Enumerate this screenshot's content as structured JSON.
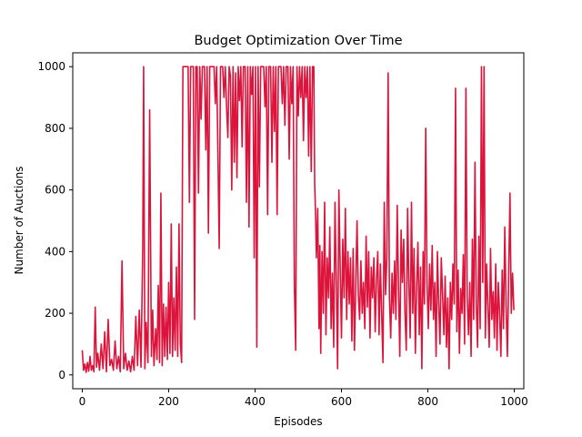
{
  "chart_data": {
    "type": "line",
    "title": "Budget Optimization Over Time",
    "xlabel": "Episodes",
    "ylabel": "Number of Auctions",
    "xlim": [
      -22,
      1022
    ],
    "ylim": [
      -45,
      1045
    ],
    "xticks": [
      0,
      200,
      400,
      600,
      800,
      1000
    ],
    "yticks": [
      0,
      200,
      400,
      600,
      800,
      1000
    ],
    "grid": false,
    "series": [
      {
        "color": "#dc143c",
        "points": [
          [
            0,
            80
          ],
          [
            3,
            15
          ],
          [
            6,
            35
          ],
          [
            9,
            8
          ],
          [
            12,
            40
          ],
          [
            15,
            12
          ],
          [
            18,
            60
          ],
          [
            21,
            15
          ],
          [
            24,
            30
          ],
          [
            27,
            10
          ],
          [
            30,
            220
          ],
          [
            33,
            25
          ],
          [
            36,
            70
          ],
          [
            40,
            15
          ],
          [
            44,
            100
          ],
          [
            48,
            20
          ],
          [
            52,
            140
          ],
          [
            56,
            10
          ],
          [
            60,
            180
          ],
          [
            64,
            30
          ],
          [
            68,
            50
          ],
          [
            72,
            15
          ],
          [
            76,
            110
          ],
          [
            80,
            20
          ],
          [
            84,
            60
          ],
          [
            88,
            10
          ],
          [
            92,
            370
          ],
          [
            96,
            20
          ],
          [
            100,
            70
          ],
          [
            104,
            15
          ],
          [
            108,
            45
          ],
          [
            112,
            10
          ],
          [
            116,
            60
          ],
          [
            120,
            15
          ],
          [
            124,
            190
          ],
          [
            128,
            30
          ],
          [
            132,
            210
          ],
          [
            136,
            25
          ],
          [
            140,
            410
          ],
          [
            142,
            1000
          ],
          [
            145,
            20
          ],
          [
            148,
            170
          ],
          [
            152,
            40
          ],
          [
            156,
            860
          ],
          [
            160,
            60
          ],
          [
            163,
            210
          ],
          [
            166,
            30
          ],
          [
            170,
            150
          ],
          [
            173,
            50
          ],
          [
            176,
            290
          ],
          [
            179,
            40
          ],
          [
            182,
            590
          ],
          [
            185,
            30
          ],
          [
            188,
            230
          ],
          [
            191,
            60
          ],
          [
            194,
            220
          ],
          [
            197,
            50
          ],
          [
            200,
            300
          ],
          [
            203,
            70
          ],
          [
            206,
            490
          ],
          [
            209,
            60
          ],
          [
            212,
            250
          ],
          [
            215,
            80
          ],
          [
            218,
            350
          ],
          [
            221,
            60
          ],
          [
            224,
            490
          ],
          [
            227,
            100
          ],
          [
            230,
            40
          ],
          [
            233,
            1000
          ],
          [
            245,
            1000
          ],
          [
            248,
            560
          ],
          [
            251,
            1000
          ],
          [
            257,
            1000
          ],
          [
            260,
            180
          ],
          [
            263,
            1000
          ],
          [
            266,
            1000
          ],
          [
            269,
            590
          ],
          [
            272,
            1000
          ],
          [
            275,
            830
          ],
          [
            278,
            1000
          ],
          [
            283,
            1000
          ],
          [
            286,
            730
          ],
          [
            289,
            1000
          ],
          [
            292,
            460
          ],
          [
            295,
            1000
          ],
          [
            305,
            1000
          ],
          [
            308,
            880
          ],
          [
            311,
            1000
          ],
          [
            314,
            720
          ],
          [
            317,
            410
          ],
          [
            320,
            1000
          ],
          [
            325,
            1000
          ],
          [
            328,
            900
          ],
          [
            331,
            1000
          ],
          [
            334,
            870
          ],
          [
            337,
            770
          ],
          [
            340,
            1000
          ],
          [
            343,
            970
          ],
          [
            346,
            600
          ],
          [
            349,
            1000
          ],
          [
            352,
            690
          ],
          [
            355,
            980
          ],
          [
            358,
            640
          ],
          [
            361,
            1000
          ],
          [
            364,
            890
          ],
          [
            367,
            1000
          ],
          [
            370,
            740
          ],
          [
            373,
            1000
          ],
          [
            377,
            1000
          ],
          [
            380,
            560
          ],
          [
            383,
            1000
          ],
          [
            386,
            480
          ],
          [
            389,
            1000
          ],
          [
            392,
            910
          ],
          [
            395,
            1000
          ],
          [
            398,
            380
          ],
          [
            401,
            1000
          ],
          [
            404,
            90
          ],
          [
            407,
            1000
          ],
          [
            410,
            610
          ],
          [
            413,
            1000
          ],
          [
            420,
            1000
          ],
          [
            423,
            870
          ],
          [
            426,
            1000
          ],
          [
            429,
            520
          ],
          [
            432,
            1000
          ],
          [
            436,
            1000
          ],
          [
            439,
            690
          ],
          [
            442,
            1000
          ],
          [
            445,
            790
          ],
          [
            448,
            1000
          ],
          [
            451,
            520
          ],
          [
            454,
            1000
          ],
          [
            460,
            1000
          ],
          [
            463,
            880
          ],
          [
            466,
            1000
          ],
          [
            469,
            810
          ],
          [
            472,
            1000
          ],
          [
            476,
            1000
          ],
          [
            479,
            700
          ],
          [
            482,
            1000
          ],
          [
            485,
            880
          ],
          [
            488,
            1000
          ],
          [
            491,
            290
          ],
          [
            494,
            80
          ],
          [
            497,
            1000
          ],
          [
            500,
            840
          ],
          [
            503,
            1000
          ],
          [
            506,
            900
          ],
          [
            509,
            1000
          ],
          [
            512,
            760
          ],
          [
            515,
            1000
          ],
          [
            518,
            900
          ],
          [
            521,
            1000
          ],
          [
            524,
            710
          ],
          [
            527,
            1000
          ],
          [
            530,
            660
          ],
          [
            533,
            1000
          ],
          [
            536,
            1000
          ],
          [
            538,
            620
          ],
          [
            540,
            520
          ],
          [
            542,
            380
          ],
          [
            545,
            540
          ],
          [
            548,
            150
          ],
          [
            550,
            420
          ],
          [
            552,
            70
          ],
          [
            555,
            400
          ],
          [
            558,
            200
          ],
          [
            561,
            560
          ],
          [
            564,
            130
          ],
          [
            567,
            380
          ],
          [
            570,
            250
          ],
          [
            573,
            480
          ],
          [
            576,
            150
          ],
          [
            579,
            330
          ],
          [
            582,
            90
          ],
          [
            585,
            560
          ],
          [
            588,
            300
          ],
          [
            591,
            20
          ],
          [
            594,
            600
          ],
          [
            597,
            350
          ],
          [
            600,
            120
          ],
          [
            603,
            440
          ],
          [
            606,
            250
          ],
          [
            609,
            540
          ],
          [
            612,
            180
          ],
          [
            615,
            400
          ],
          [
            618,
            230
          ],
          [
            621,
            380
          ],
          [
            624,
            110
          ],
          [
            627,
            410
          ],
          [
            630,
            80
          ],
          [
            633,
            290
          ],
          [
            636,
            500
          ],
          [
            639,
            260
          ],
          [
            642,
            180
          ],
          [
            645,
            370
          ],
          [
            648,
            200
          ],
          [
            651,
            300
          ],
          [
            654,
            150
          ],
          [
            657,
            450
          ],
          [
            660,
            220
          ],
          [
            663,
            400
          ],
          [
            666,
            120
          ],
          [
            669,
            350
          ],
          [
            672,
            250
          ],
          [
            675,
            380
          ],
          [
            678,
            140
          ],
          [
            681,
            310
          ],
          [
            684,
            400
          ],
          [
            687,
            130
          ],
          [
            690,
            360
          ],
          [
            693,
            200
          ],
          [
            696,
            40
          ],
          [
            699,
            560
          ],
          [
            702,
            260
          ],
          [
            705,
            380
          ],
          [
            708,
            980
          ],
          [
            711,
            250
          ],
          [
            714,
            120
          ],
          [
            717,
            330
          ],
          [
            720,
            200
          ],
          [
            723,
            370
          ],
          [
            726,
            180
          ],
          [
            729,
            550
          ],
          [
            732,
            280
          ],
          [
            735,
            60
          ],
          [
            738,
            470
          ],
          [
            741,
            300
          ],
          [
            744,
            440
          ],
          [
            747,
            200
          ],
          [
            750,
            80
          ],
          [
            753,
            540
          ],
          [
            756,
            300
          ],
          [
            759,
            120
          ],
          [
            762,
            560
          ],
          [
            765,
            200
          ],
          [
            768,
            410
          ],
          [
            771,
            70
          ],
          [
            774,
            290
          ],
          [
            777,
            430
          ],
          [
            780,
            130
          ],
          [
            783,
            350
          ],
          [
            786,
            20
          ],
          [
            789,
            400
          ],
          [
            792,
            230
          ],
          [
            795,
            800
          ],
          [
            798,
            300
          ],
          [
            801,
            150
          ],
          [
            804,
            360
          ],
          [
            807,
            210
          ],
          [
            810,
            420
          ],
          [
            813,
            180
          ],
          [
            816,
            300
          ],
          [
            819,
            60
          ],
          [
            822,
            400
          ],
          [
            825,
            230
          ],
          [
            828,
            100
          ],
          [
            831,
            380
          ],
          [
            834,
            260
          ],
          [
            837,
            130
          ],
          [
            840,
            320
          ],
          [
            843,
            90
          ],
          [
            846,
            250
          ],
          [
            849,
            20
          ],
          [
            852,
            300
          ],
          [
            855,
            180
          ],
          [
            858,
            360
          ],
          [
            861,
            230
          ],
          [
            864,
            930
          ],
          [
            867,
            140
          ],
          [
            870,
            340
          ],
          [
            873,
            70
          ],
          [
            876,
            280
          ],
          [
            879,
            200
          ],
          [
            882,
            390
          ],
          [
            885,
            100
          ],
          [
            888,
            930
          ],
          [
            891,
            250
          ],
          [
            894,
            130
          ],
          [
            897,
            300
          ],
          [
            900,
            60
          ],
          [
            903,
            440
          ],
          [
            906,
            180
          ],
          [
            909,
            690
          ],
          [
            912,
            230
          ],
          [
            915,
            90
          ],
          [
            918,
            450
          ],
          [
            921,
            150
          ],
          [
            924,
            1000
          ],
          [
            927,
            300
          ],
          [
            930,
            1000
          ],
          [
            933,
            120
          ],
          [
            936,
            360
          ],
          [
            939,
            220
          ],
          [
            942,
            90
          ],
          [
            945,
            410
          ],
          [
            948,
            180
          ],
          [
            951,
            270
          ],
          [
            954,
            120
          ],
          [
            957,
            360
          ],
          [
            960,
            80
          ],
          [
            963,
            300
          ],
          [
            966,
            200
          ],
          [
            969,
            60
          ],
          [
            972,
            340
          ],
          [
            975,
            150
          ],
          [
            978,
            480
          ],
          [
            981,
            220
          ],
          [
            984,
            60
          ],
          [
            987,
            320
          ],
          [
            990,
            590
          ],
          [
            993,
            200
          ],
          [
            996,
            330
          ],
          [
            999,
            210
          ]
        ]
      }
    ]
  }
}
